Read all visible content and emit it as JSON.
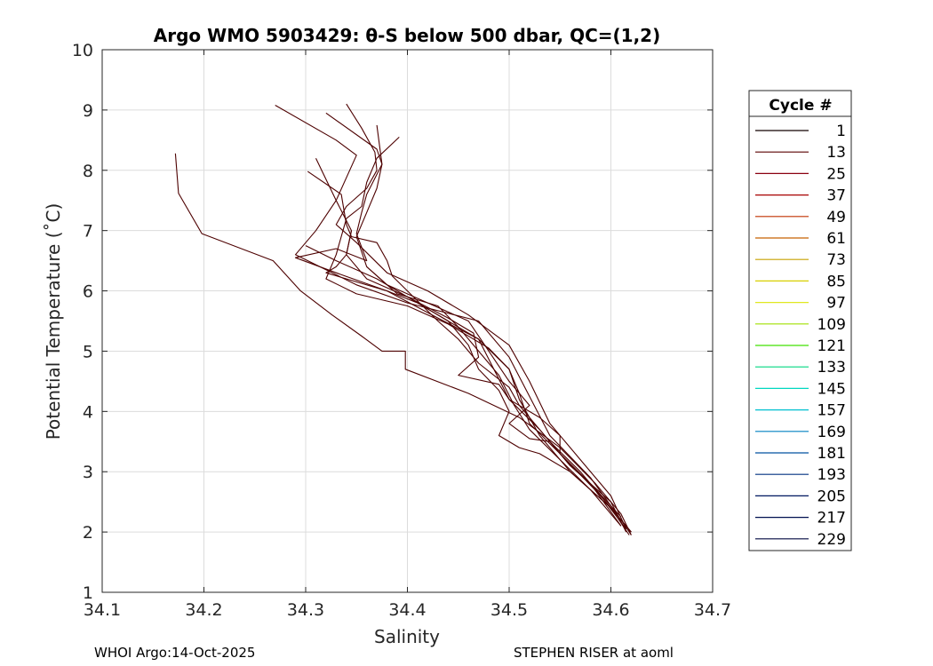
{
  "footer": {
    "left": "WHOI Argo:14-Oct-2025",
    "right": "STEPHEN RISER at aoml"
  },
  "chart_data": {
    "type": "line",
    "title": "Argo WMO 5903429: θ-S below 500 dbar,  QC=(1,2)",
    "xlabel": "Salinity",
    "ylabel": "Potential Temperature (˚C)",
    "xlim": [
      34.1,
      34.7
    ],
    "ylim": [
      1,
      10
    ],
    "xticks": [
      "34.1",
      "34.2",
      "34.3",
      "34.4",
      "34.5",
      "34.6",
      "34.7"
    ],
    "yticks": [
      "1",
      "2",
      "3",
      "4",
      "5",
      "6",
      "7",
      "8",
      "9",
      "10"
    ],
    "grid": true,
    "legend": {
      "title": "Cycle #",
      "placement": "right",
      "entries": [
        {
          "label": "1",
          "color": "#100000"
        },
        {
          "label": "13",
          "color": "#5a0000"
        },
        {
          "label": "25",
          "color": "#8a0010"
        },
        {
          "label": "37",
          "color": "#a80000"
        },
        {
          "label": "49",
          "color": "#c03000"
        },
        {
          "label": "61",
          "color": "#c86000"
        },
        {
          "label": "73",
          "color": "#c8a000"
        },
        {
          "label": "85",
          "color": "#d8d000"
        },
        {
          "label": "97",
          "color": "#e0e820"
        },
        {
          "label": "109",
          "color": "#a0e000"
        },
        {
          "label": "121",
          "color": "#40e000"
        },
        {
          "label": "133",
          "color": "#00d880"
        },
        {
          "label": "145",
          "color": "#00d8c0"
        },
        {
          "label": "157",
          "color": "#00c0d0"
        },
        {
          "label": "169",
          "color": "#0080c0"
        },
        {
          "label": "181",
          "color": "#0050a0"
        },
        {
          "label": "193",
          "color": "#003080"
        },
        {
          "label": "205",
          "color": "#001860"
        },
        {
          "label": "217",
          "color": "#001050"
        },
        {
          "label": "229",
          "color": "#000840"
        }
      ]
    },
    "series_color": "#4d0000",
    "series": [
      {
        "x": [
          34.172,
          34.175,
          34.198,
          34.268,
          34.295,
          34.326,
          34.355,
          34.375,
          34.398,
          34.398,
          34.46,
          34.51,
          34.55,
          34.585,
          34.61,
          34.62
        ],
        "y": [
          8.28,
          7.62,
          6.95,
          6.5,
          6.0,
          5.6,
          5.25,
          5.0,
          5.0,
          4.7,
          4.3,
          3.9,
          3.4,
          2.8,
          2.3,
          1.95
        ]
      },
      {
        "x": [
          34.27,
          34.33,
          34.35,
          34.33,
          34.31,
          34.29,
          34.35,
          34.4,
          34.47,
          34.5,
          34.54,
          34.58,
          34.61,
          34.62
        ],
        "y": [
          9.08,
          8.5,
          8.25,
          7.5,
          7.0,
          6.6,
          6.1,
          5.8,
          5.5,
          4.9,
          3.6,
          2.9,
          2.2,
          1.95
        ]
      },
      {
        "x": [
          34.32,
          34.37,
          34.375,
          34.36,
          34.355,
          34.35,
          34.36,
          34.33,
          34.29,
          34.33,
          34.38,
          34.41,
          34.43,
          34.47,
          34.5,
          34.53,
          34.56,
          34.6,
          34.615
        ],
        "y": [
          8.95,
          8.35,
          8.1,
          7.6,
          7.3,
          6.95,
          6.5,
          6.7,
          6.55,
          6.3,
          6.0,
          5.8,
          5.6,
          5.2,
          4.2,
          3.7,
          3.1,
          2.5,
          2.0
        ]
      },
      {
        "x": [
          34.34,
          34.355,
          34.368,
          34.37,
          34.36,
          34.34,
          34.33,
          34.35,
          34.38,
          34.42,
          34.46,
          34.5,
          34.52,
          34.54,
          34.57,
          34.6,
          34.615
        ],
        "y": [
          9.1,
          8.7,
          8.3,
          8.0,
          7.7,
          7.4,
          7.1,
          6.8,
          6.3,
          6.0,
          5.6,
          5.1,
          4.5,
          3.8,
          3.2,
          2.6,
          2.05
        ]
      },
      {
        "x": [
          34.37,
          34.375,
          34.37,
          34.36,
          34.35,
          34.36,
          34.39,
          34.43,
          34.45,
          34.47,
          34.49,
          34.505,
          34.52,
          34.55,
          34.58,
          34.61
        ],
        "y": [
          8.75,
          8.1,
          7.7,
          7.3,
          6.9,
          6.4,
          5.95,
          5.75,
          5.4,
          5.0,
          4.6,
          4.1,
          3.7,
          3.2,
          2.7,
          2.1
        ]
      },
      {
        "x": [
          34.392,
          34.37,
          34.36,
          34.355,
          34.34,
          34.33,
          34.32,
          34.35,
          34.4,
          34.44,
          34.48,
          34.5,
          34.51,
          34.53,
          34.56,
          34.6,
          34.62
        ],
        "y": [
          8.55,
          8.2,
          7.8,
          7.4,
          7.2,
          6.6,
          6.2,
          5.95,
          5.75,
          5.45,
          5.05,
          4.7,
          4.2,
          3.6,
          3.0,
          2.4,
          2.0
        ]
      },
      {
        "x": [
          34.302,
          34.335,
          34.34,
          34.345,
          34.37,
          34.38,
          34.385,
          34.4,
          34.43,
          34.45,
          34.47,
          34.5,
          34.51,
          34.53,
          34.56,
          34.58,
          34.61
        ],
        "y": [
          7.98,
          7.6,
          7.1,
          6.9,
          6.8,
          6.5,
          6.25,
          6.0,
          5.5,
          5.2,
          4.8,
          4.4,
          4.1,
          3.7,
          3.1,
          2.8,
          2.25
        ]
      },
      {
        "x": [
          34.31,
          34.33,
          34.345,
          34.34,
          34.33,
          34.32,
          34.38,
          34.43,
          34.47,
          34.5,
          34.51,
          34.52,
          34.55,
          34.59,
          34.615
        ],
        "y": [
          8.2,
          7.5,
          7.0,
          6.6,
          6.4,
          6.3,
          6.0,
          5.55,
          5.2,
          4.7,
          4.3,
          3.8,
          3.3,
          2.6,
          2.05
        ]
      },
      {
        "x": [
          34.3,
          34.33,
          34.37,
          34.4,
          34.44,
          34.46,
          34.47,
          34.49,
          34.5,
          34.49,
          34.51,
          34.53,
          34.56,
          34.6,
          34.62
        ],
        "y": [
          6.75,
          6.5,
          6.2,
          5.9,
          5.5,
          5.1,
          4.7,
          4.35,
          4.0,
          3.6,
          3.4,
          3.3,
          3.0,
          2.4,
          2.0
        ]
      },
      {
        "x": [
          34.345,
          34.34,
          34.36,
          34.4,
          34.44,
          34.465,
          34.47,
          34.45,
          34.49,
          34.5,
          34.53,
          34.55,
          34.55,
          34.58,
          34.61
        ],
        "y": [
          7.0,
          6.6,
          6.2,
          5.9,
          5.55,
          5.3,
          4.9,
          4.6,
          4.45,
          4.2,
          3.9,
          3.6,
          3.3,
          2.8,
          2.1
        ]
      },
      {
        "x": [
          34.36,
          34.38,
          34.42,
          34.46,
          34.48,
          34.5,
          34.52,
          34.5,
          34.52,
          34.54,
          34.57,
          34.6,
          34.618
        ],
        "y": [
          6.4,
          6.1,
          5.8,
          5.5,
          5.0,
          4.5,
          4.1,
          3.8,
          3.55,
          3.5,
          3.0,
          2.4,
          1.95
        ]
      }
    ]
  }
}
